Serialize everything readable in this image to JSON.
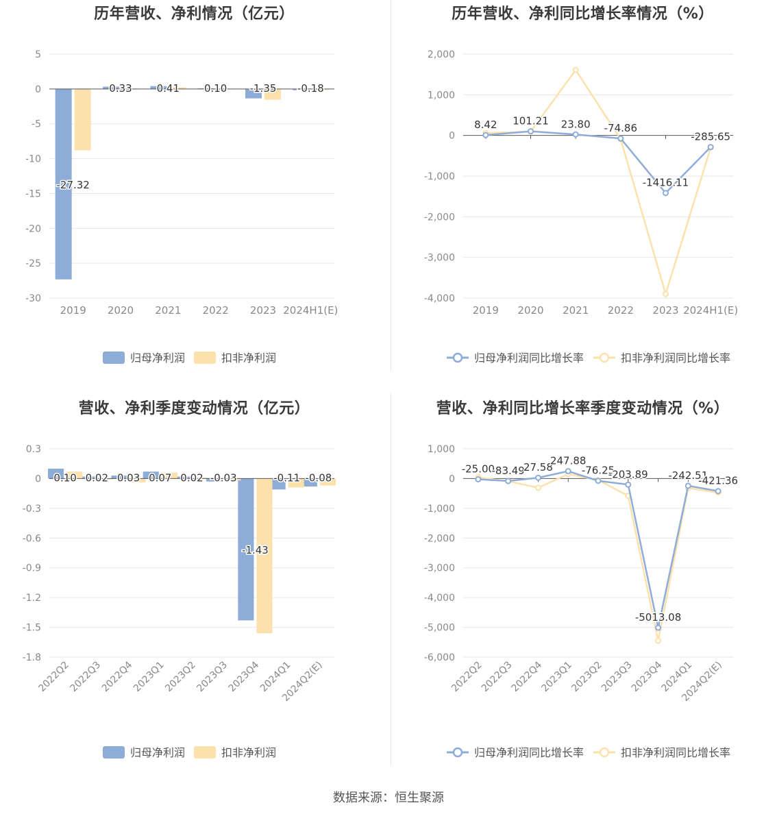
{
  "source_label": "数据来源：恒生聚源",
  "colors": {
    "series1": "#8eacd8",
    "series2": "#fde1ad",
    "grid": "#e4e6ee",
    "axis_text": "#888888",
    "label_text": "#333333"
  },
  "chart_data": [
    {
      "type": "bar",
      "title": "历年营收、净利情况（亿元）",
      "categories": [
        "2019",
        "2020",
        "2021",
        "2022",
        "2023",
        "2024H1(E)"
      ],
      "ylim": [
        -30,
        5
      ],
      "yticks": [
        5,
        0,
        -5,
        -10,
        -15,
        -20,
        -25,
        -30
      ],
      "ytick_labels": [
        "5",
        "0",
        "-5",
        "-10",
        "-15",
        "-20",
        "-25",
        "-30"
      ],
      "series": [
        {
          "name": "归母净利润",
          "values": [
            -27.32,
            0.33,
            0.41,
            0.1,
            -1.35,
            -0.18
          ],
          "labels": [
            "-27.32",
            "0.33",
            "0.41",
            "0.10",
            "-1.35",
            "-0.18"
          ]
        },
        {
          "name": "扣非净利润",
          "values": [
            -8.8,
            -0.08,
            0.25,
            0.05,
            -1.55,
            -0.14
          ]
        }
      ],
      "legend": "bottom",
      "grid": true
    },
    {
      "type": "line",
      "title": "历年营收、净利同比增长率情况（%）",
      "categories": [
        "2019",
        "2020",
        "2021",
        "2022",
        "2023",
        "2024H1(E)"
      ],
      "ylim": [
        -4000,
        2000
      ],
      "yticks": [
        2000,
        1000,
        0,
        -1000,
        -2000,
        -3000,
        -4000
      ],
      "ytick_labels": [
        "2,000",
        "1,000",
        "0",
        "-1,000",
        "-2,000",
        "-3,000",
        "-4,000"
      ],
      "series": [
        {
          "name": "归母净利润同比增长率",
          "values": [
            8.42,
            101.21,
            23.8,
            -74.86,
            -1416.11,
            -285.65
          ],
          "labels": [
            "8.42",
            "101.21",
            "23.80",
            "-74.86",
            "-1416.11",
            "-285.65"
          ]
        },
        {
          "name": "扣非净利润同比增长率",
          "values": [
            60,
            95,
            1610,
            -90,
            -3900,
            -300
          ]
        }
      ],
      "legend": "bottom",
      "grid": true
    },
    {
      "type": "bar",
      "title": "营收、净利季度变动情况（亿元）",
      "categories": [
        "2022Q2",
        "2022Q3",
        "2022Q4",
        "2023Q1",
        "2023Q2",
        "2023Q3",
        "2023Q4",
        "2024Q1",
        "2024Q2(E)"
      ],
      "ylim": [
        -1.8,
        0.3
      ],
      "yticks": [
        0.3,
        0,
        -0.3,
        -0.6,
        -0.9,
        -1.2,
        -1.5,
        -1.8
      ],
      "ytick_labels": [
        "0.3",
        "0",
        "-0.3",
        "-0.6",
        "-0.9",
        "-1.2",
        "-1.5",
        "-1.8"
      ],
      "series": [
        {
          "name": "归母净利润",
          "values": [
            0.1,
            0.02,
            0.03,
            0.07,
            0.02,
            -0.03,
            -1.43,
            -0.11,
            -0.08
          ],
          "labels": [
            "0.10",
            "0.02",
            "0.03",
            "0.07",
            "0.02",
            "-0.03",
            "-1.43",
            "-0.11",
            "-0.08"
          ]
        },
        {
          "name": "扣非净利润",
          "values": [
            0.07,
            -0.01,
            -0.04,
            0.06,
            0.01,
            -0.02,
            -1.56,
            -0.09,
            -0.07
          ]
        }
      ],
      "legend": "bottom",
      "grid": true
    },
    {
      "type": "line",
      "title": "营收、净利同比增长率季度变动情况（%）",
      "categories": [
        "2022Q2",
        "2022Q3",
        "2022Q4",
        "2023Q1",
        "2023Q2",
        "2023Q3",
        "2023Q4",
        "2024Q1",
        "2024Q2(E)"
      ],
      "ylim": [
        -6000,
        1000
      ],
      "yticks": [
        1000,
        0,
        -1000,
        -2000,
        -3000,
        -4000,
        -5000,
        -6000
      ],
      "ytick_labels": [
        "1,000",
        "0",
        "-1,000",
        "-2,000",
        "-3,000",
        "-4,000",
        "-5,000",
        "-6,000"
      ],
      "series": [
        {
          "name": "归母净利润同比增长率",
          "values": [
            -25.0,
            -83.49,
            27.58,
            247.88,
            -76.25,
            -203.89,
            -5013.08,
            -242.51,
            -421.36
          ],
          "labels": [
            "-25.00",
            "-83.49",
            "27.58",
            "247.88",
            "-76.25",
            "-203.89",
            "-5013.08",
            "-242.51",
            "-421.36"
          ]
        },
        {
          "name": "扣非净利润同比增长率",
          "values": [
            40,
            -90,
            -310,
            150,
            -50,
            -580,
            -5450,
            -320,
            -470
          ]
        }
      ],
      "legend": "bottom",
      "grid": true
    }
  ]
}
